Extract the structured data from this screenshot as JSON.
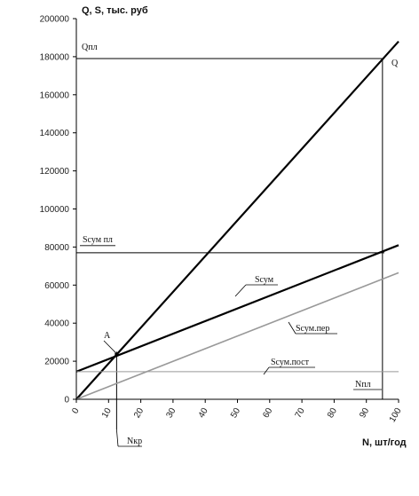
{
  "chart_data": {
    "type": "line",
    "ylabel": "Q, S, тыс. руб",
    "xlabel": "N, шт/год",
    "xlim": [
      0,
      100
    ],
    "ylim": [
      0,
      200000
    ],
    "x_ticks": [
      0,
      10,
      20,
      30,
      40,
      50,
      60,
      70,
      80,
      90,
      100
    ],
    "y_ticks": [
      0,
      20000,
      40000,
      60000,
      80000,
      100000,
      120000,
      140000,
      160000,
      180000,
      200000
    ],
    "series": [
      {
        "name": "Q",
        "x": [
          0,
          100
        ],
        "y": [
          0,
          188000
        ],
        "color": "#000000"
      },
      {
        "name": "Sсум",
        "x": [
          0,
          100
        ],
        "y": [
          14500,
          81000
        ],
        "color": "#000000"
      },
      {
        "name": "Sсум.пер",
        "x": [
          0,
          100
        ],
        "y": [
          0,
          66500
        ],
        "color": "#999999"
      },
      {
        "name": "Sсум.пост",
        "x": [
          0,
          100
        ],
        "y": [
          14500,
          14500
        ],
        "color": "#999999"
      }
    ],
    "reference_lines": {
      "q_pl": {
        "label": "Qпл",
        "y": 179000
      },
      "s_sum_pl": {
        "label": "Sсум пл",
        "y": 77000
      },
      "n_pl": {
        "label": "Nпл",
        "x": 95
      },
      "n_kr": {
        "label": "Nкр",
        "x": 12.5
      }
    },
    "annotations": {
      "point_a": "А",
      "q_end": "Q"
    }
  }
}
